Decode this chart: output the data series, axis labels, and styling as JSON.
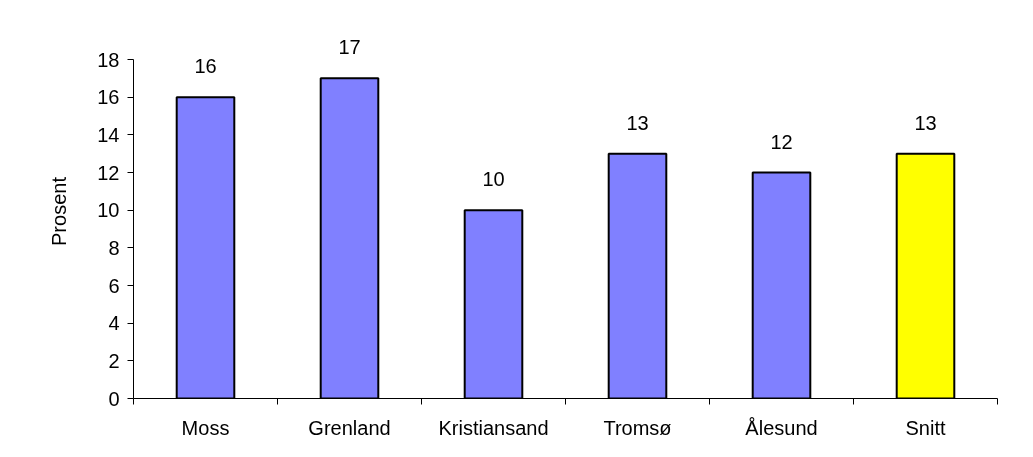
{
  "chart_data": {
    "type": "bar",
    "ylabel": "Prosent",
    "categories": [
      "Moss",
      "Grenland",
      "Kristiansand",
      "Tromsø",
      "Ålesund",
      "Snitt"
    ],
    "values": [
      16,
      17,
      10,
      13,
      12,
      13
    ],
    "colors": [
      "#8080ff",
      "#8080ff",
      "#8080ff",
      "#8080ff",
      "#8080ff",
      "#ffff00"
    ],
    "ylim": [
      0,
      18
    ],
    "yticks": [
      0,
      2,
      4,
      6,
      8,
      10,
      12,
      14,
      16,
      18
    ],
    "data_labels": true
  }
}
